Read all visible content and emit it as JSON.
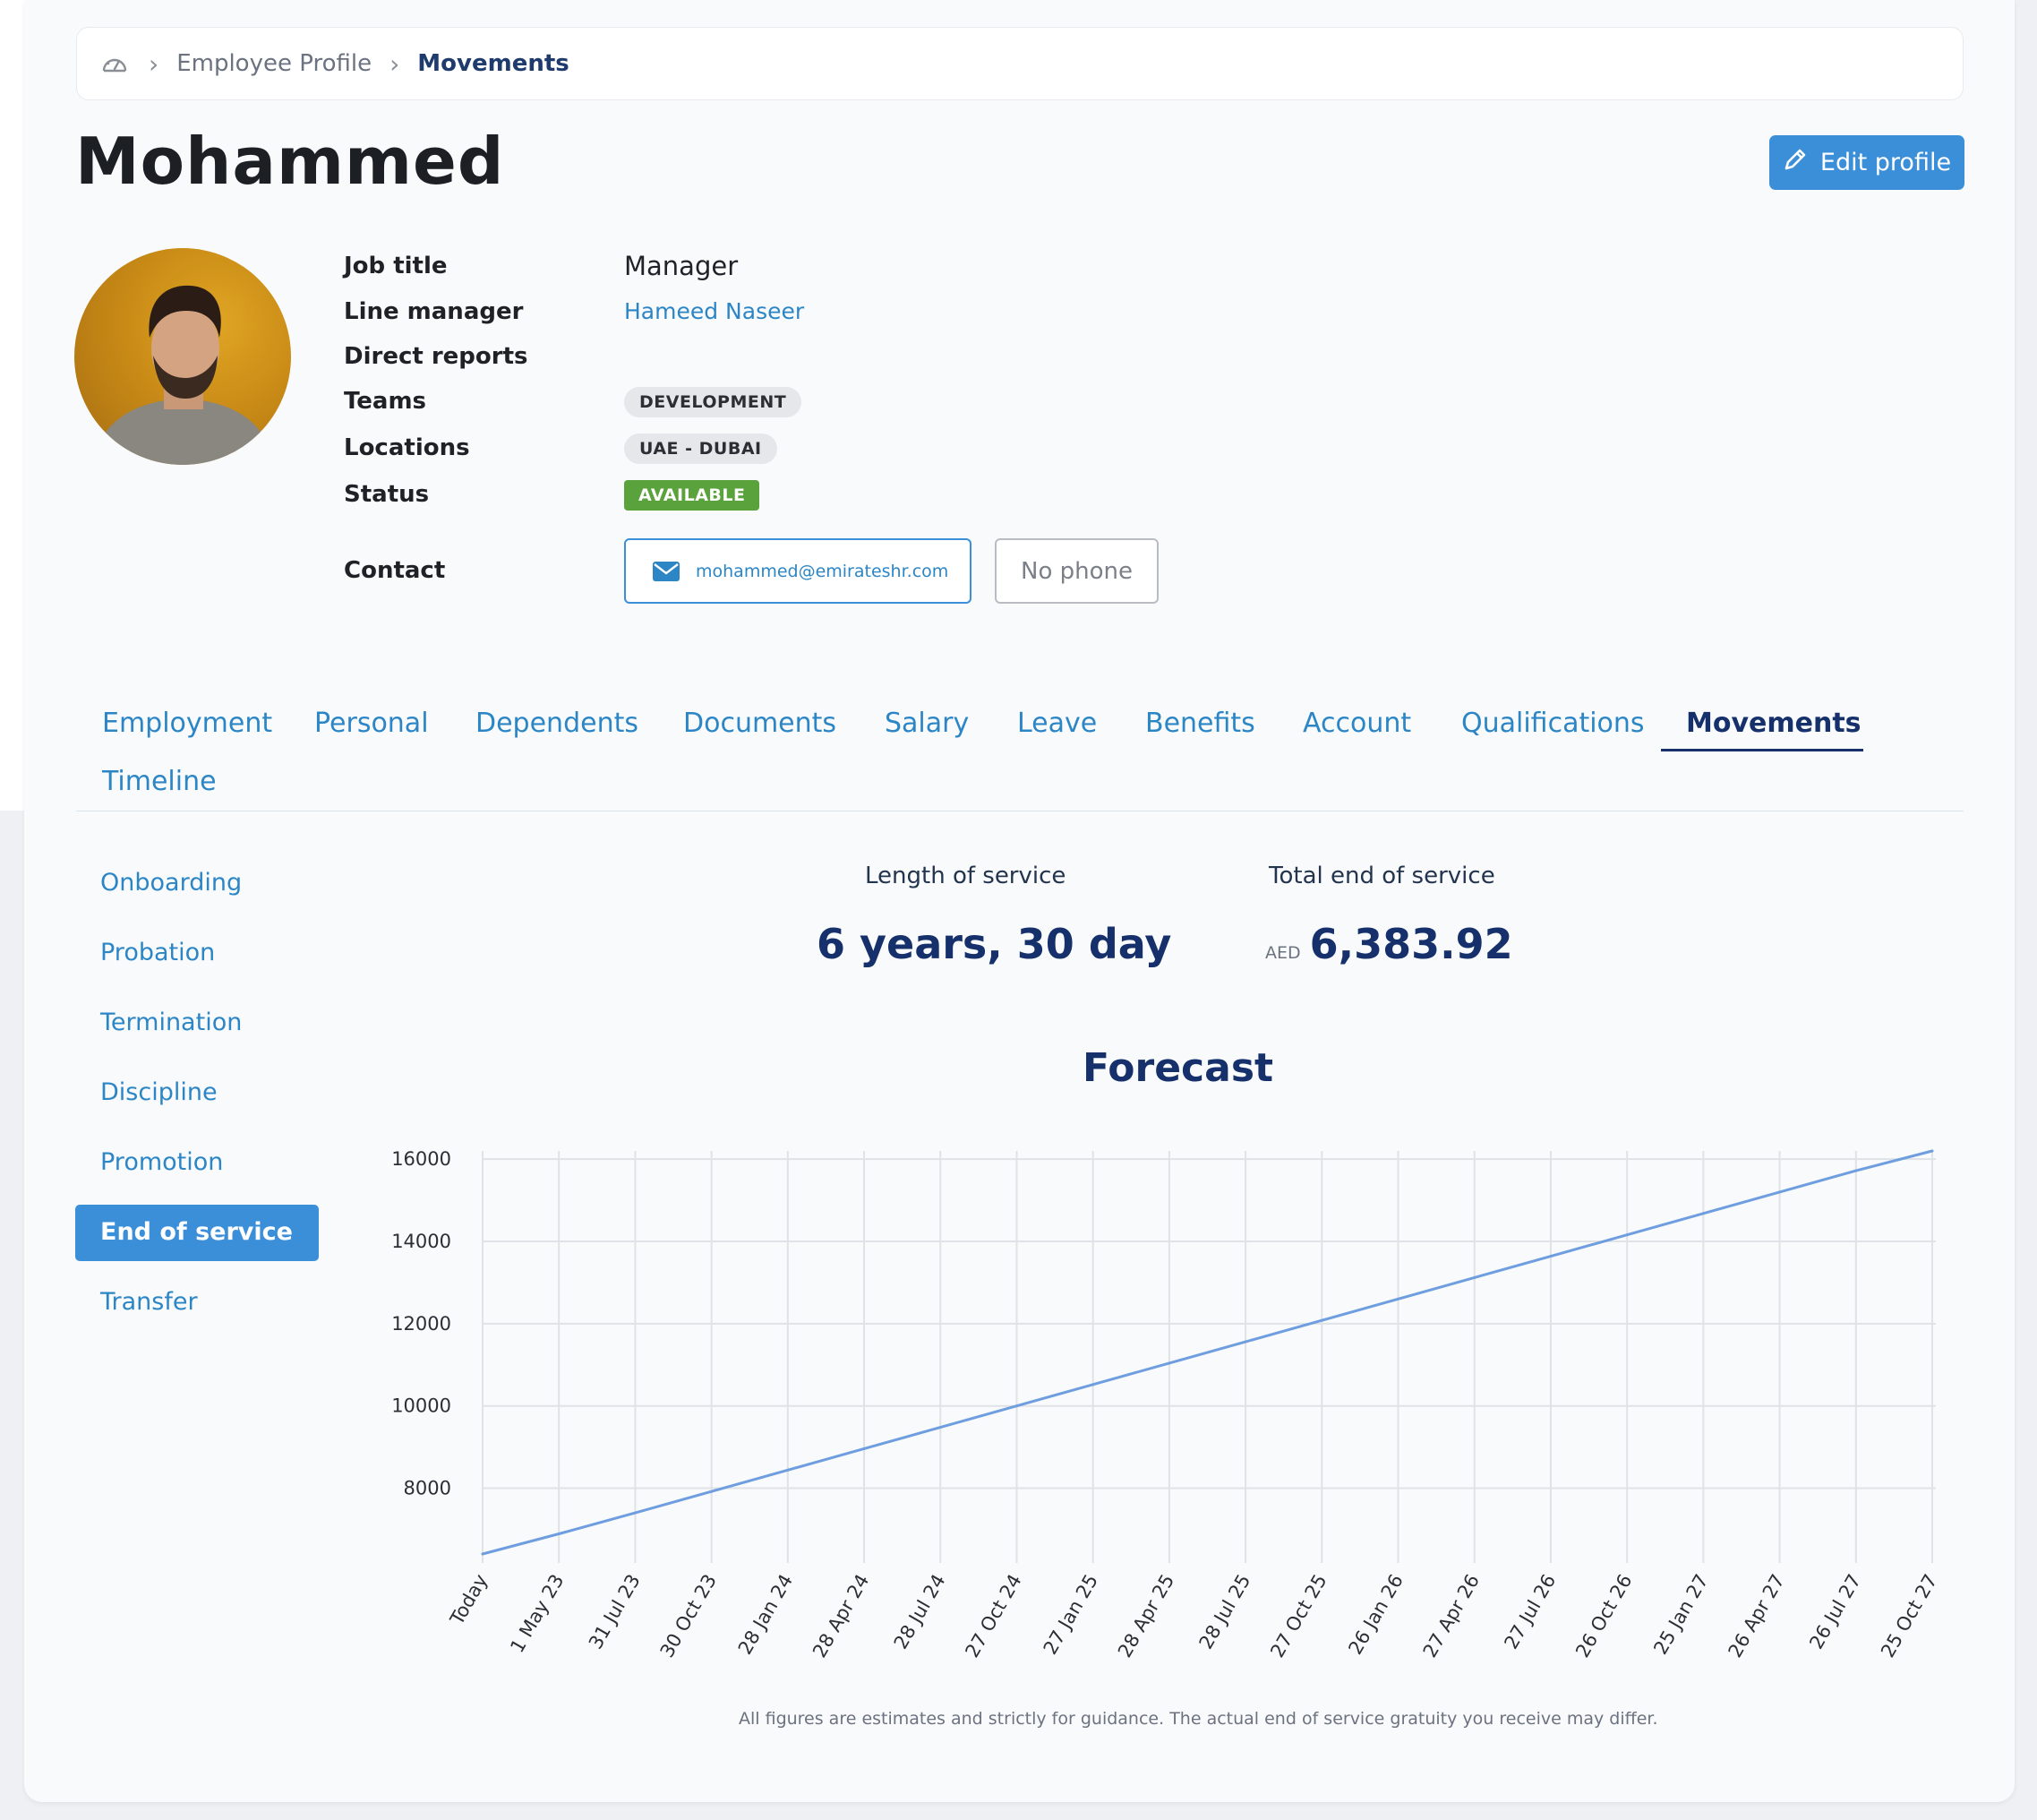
{
  "breadcrumb": {
    "home_icon": "dashboard-gauge-icon",
    "items": [
      "Employee Profile",
      "Movements"
    ]
  },
  "page_title": "Mohammed",
  "edit_button": {
    "label": "Edit profile",
    "icon": "pencil-icon"
  },
  "avatar": {
    "icon": "user-photo"
  },
  "profile": {
    "job_title_label": "Job title",
    "job_title": "Manager",
    "line_manager_label": "Line manager",
    "line_manager": "Hameed Naseer",
    "direct_reports_label": "Direct reports",
    "teams_label": "Teams",
    "team": "DEVELOPMENT",
    "locations_label": "Locations",
    "location": "UAE - DUBAI",
    "status_label": "Status",
    "status": "AVAILABLE",
    "contact_label": "Contact",
    "email": "mohammed@emirateshr.com",
    "phone": "No phone"
  },
  "tabs": [
    "Employment",
    "Personal",
    "Dependents",
    "Documents",
    "Salary",
    "Leave",
    "Benefits",
    "Account",
    "Qualifications",
    "Movements",
    "Timeline"
  ],
  "active_tab": "Movements",
  "side_menu": [
    "Onboarding",
    "Probation",
    "Termination",
    "Discipline",
    "Promotion",
    "End of service",
    "Transfer"
  ],
  "active_side": "End of service",
  "stats": {
    "length_label": "Length of service",
    "length_value": "6 years, 30 day",
    "total_label": "Total end of service",
    "currency": "AED",
    "total_value": "6,383.92"
  },
  "colors": {
    "accent": "#3b8fd9",
    "navy": "#15306b",
    "link": "#2c86c6",
    "available": "#5aa23b",
    "line": "#6f9ee0"
  },
  "chart_data": {
    "type": "line",
    "title": "Forecast",
    "x": [
      "Today",
      "1 May 23",
      "31 Jul 23",
      "30 Oct 23",
      "28 Jan 24",
      "28 Apr 24",
      "28 Jul 24",
      "27 Oct 24",
      "27 Jan 25",
      "28 Apr 25",
      "28 Jul 25",
      "27 Oct 25",
      "26 Jan 26",
      "27 Apr 26",
      "27 Jul 26",
      "26 Oct 26",
      "25 Jan 27",
      "26 Apr 27",
      "26 Jul 27",
      "25 Oct 27"
    ],
    "series": [
      {
        "values": [
          6400,
          6890,
          7400,
          7920,
          8440,
          8960,
          9480,
          10000,
          10520,
          11040,
          11560,
          12080,
          12600,
          13120,
          13640,
          14160,
          14680,
          15200,
          15720,
          16200
        ]
      }
    ],
    "yticks": [
      8000,
      10000,
      12000,
      14000,
      16000
    ],
    "ylim": [
      6400,
      16200
    ],
    "grid": true,
    "disclaimer": "All figures are estimates and strictly for guidance. The actual end of service gratuity you receive may differ."
  }
}
